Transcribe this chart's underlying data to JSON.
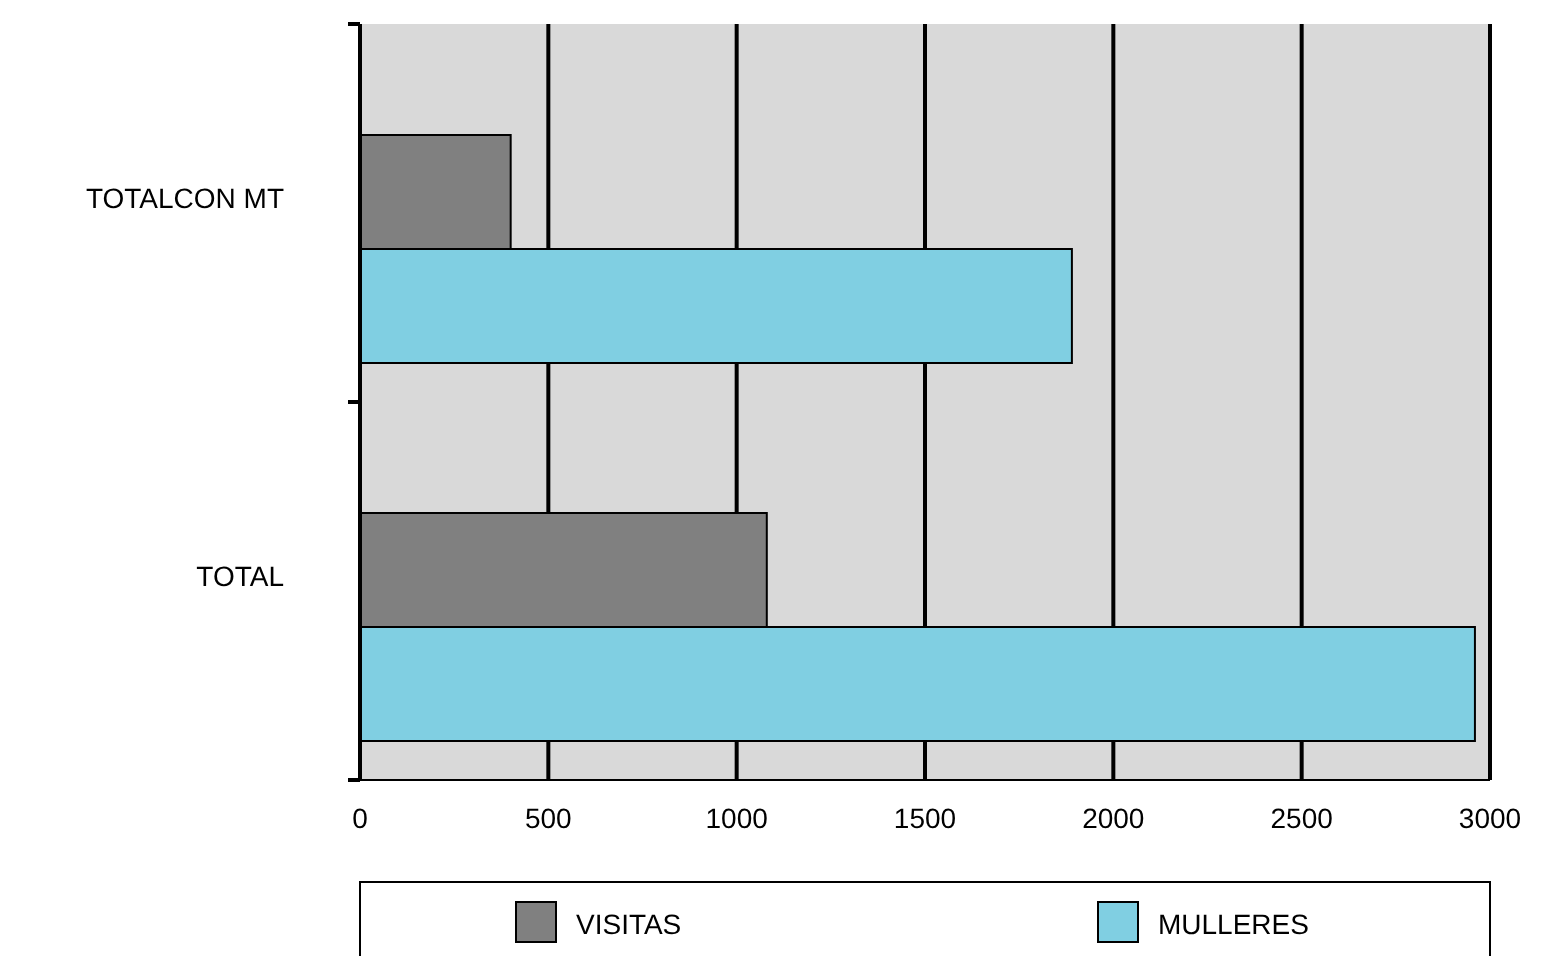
{
  "chart_data": {
    "type": "bar",
    "orientation": "horizontal",
    "categories": [
      "TOTALCON MT",
      "TOTAL"
    ],
    "series": [
      {
        "name": "VISITAS",
        "color": "#808080",
        "values": [
          400,
          1080
        ]
      },
      {
        "name": "MULLERES",
        "color": "#80cfe2",
        "values": [
          1890,
          2960
        ]
      }
    ],
    "xlim": [
      0,
      3000
    ],
    "xticks": [
      0,
      500,
      1000,
      1500,
      2000,
      2500,
      3000
    ],
    "grid": "x",
    "legend": "bottom"
  }
}
